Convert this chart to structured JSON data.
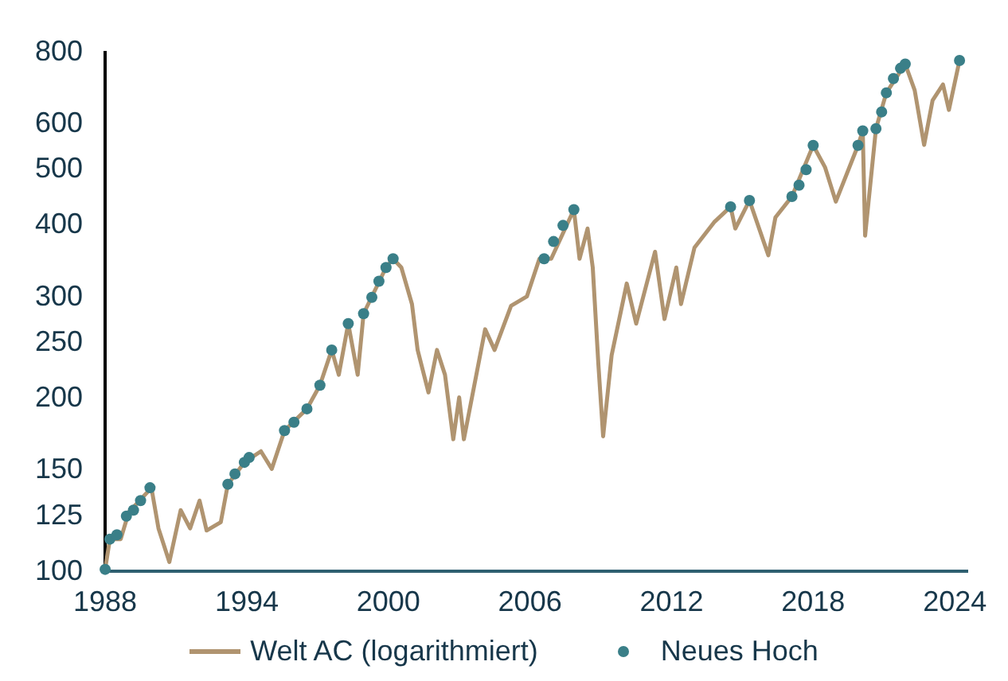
{
  "chart_data": {
    "type": "line",
    "xlim": [
      1988,
      2024.5
    ],
    "xticks": [
      1988,
      1994,
      2000,
      2006,
      2012,
      2018,
      2024
    ],
    "ylim": [
      100,
      800
    ],
    "yticks": [
      100,
      125,
      150,
      200,
      250,
      300,
      400,
      500,
      600,
      800
    ],
    "log": "y",
    "grid": false,
    "legend": "bottom",
    "series": [
      {
        "name": "Welt AC (logarithmiert)",
        "color": "#b09470",
        "marker": "none",
        "x": [
          1988.0,
          1988.2,
          1988.66,
          1989.0,
          1989.46,
          1989.96,
          1990.26,
          1990.72,
          1991.2,
          1991.6,
          1992.0,
          1992.3,
          1992.9,
          1993.2,
          1993.9,
          1994.6,
          1995.06,
          1995.6,
          1996.55,
          1997.1,
          1997.6,
          1997.9,
          1998.3,
          1998.7,
          1998.95,
          1999.9,
          2000.2,
          2000.55,
          2001.0,
          2001.24,
          2001.7,
          2002.06,
          2002.4,
          2002.75,
          2003.0,
          2003.2,
          2004.1,
          2004.5,
          2005.2,
          2005.87,
          2006.4,
          2006.9,
          2007.86,
          2008.1,
          2008.44,
          2008.66,
          2008.9,
          2009.1,
          2009.46,
          2010.1,
          2010.5,
          2011.3,
          2011.7,
          2012.2,
          2012.4,
          2012.97,
          2013.8,
          2014.5,
          2014.7,
          2015.3,
          2016.1,
          2016.4,
          2017.1,
          2018.0,
          2018.5,
          2018.96,
          2019.9,
          2020.1,
          2020.2,
          2020.66,
          2021.1,
          2021.9,
          2022.3,
          2022.7,
          2023.06,
          2023.5,
          2023.75,
          2024.2
        ],
        "values": [
          101,
          114,
          114,
          127,
          133,
          140,
          119,
          104,
          128,
          119,
          133,
          118,
          122,
          142,
          155,
          162,
          151,
          176,
          192,
          211,
          243,
          220,
          270,
          220,
          281,
          338,
          350,
          338,
          292,
          243,
          205,
          243,
          220,
          170,
          201,
          170,
          264,
          243,
          290,
          301,
          350,
          350,
          426,
          350,
          395,
          338,
          229,
          172,
          238,
          317,
          270,
          360,
          275,
          338,
          292,
          366,
          405,
          431,
          395,
          442,
          355,
          413,
          449,
          551,
          505,
          440,
          551,
          584,
          384,
          589,
          680,
          763,
          687,
          552,
          660,
          703,
          635,
          774
        ]
      },
      {
        "name": "Neues Hoch",
        "type": "scatter",
        "color": "#3a7f88",
        "marker": "circle",
        "x": [
          1988.0,
          1988.2,
          1988.5,
          1988.9,
          1989.2,
          1989.5,
          1989.9,
          1993.2,
          1993.5,
          1993.9,
          1994.1,
          1995.6,
          1996.0,
          1996.55,
          1997.1,
          1997.6,
          1998.3,
          1998.95,
          1999.3,
          1999.6,
          1999.9,
          2000.2,
          2006.6,
          2007.0,
          2007.4,
          2007.86,
          2014.5,
          2015.3,
          2017.1,
          2017.4,
          2017.7,
          2018.0,
          2019.9,
          2020.1,
          2020.66,
          2020.9,
          2021.1,
          2021.4,
          2021.7,
          2021.9,
          2024.2
        ],
        "values": [
          101,
          114,
          116,
          125,
          128,
          133,
          140,
          142,
          148,
          155,
          158,
          176,
          182,
          192,
          211,
          243,
          270,
          281,
          300,
          320,
          338,
          350,
          350,
          375,
          400,
          426,
          431,
          442,
          449,
          470,
          500,
          551,
          551,
          584,
          589,
          630,
          680,
          720,
          750,
          763,
          774
        ]
      }
    ]
  }
}
